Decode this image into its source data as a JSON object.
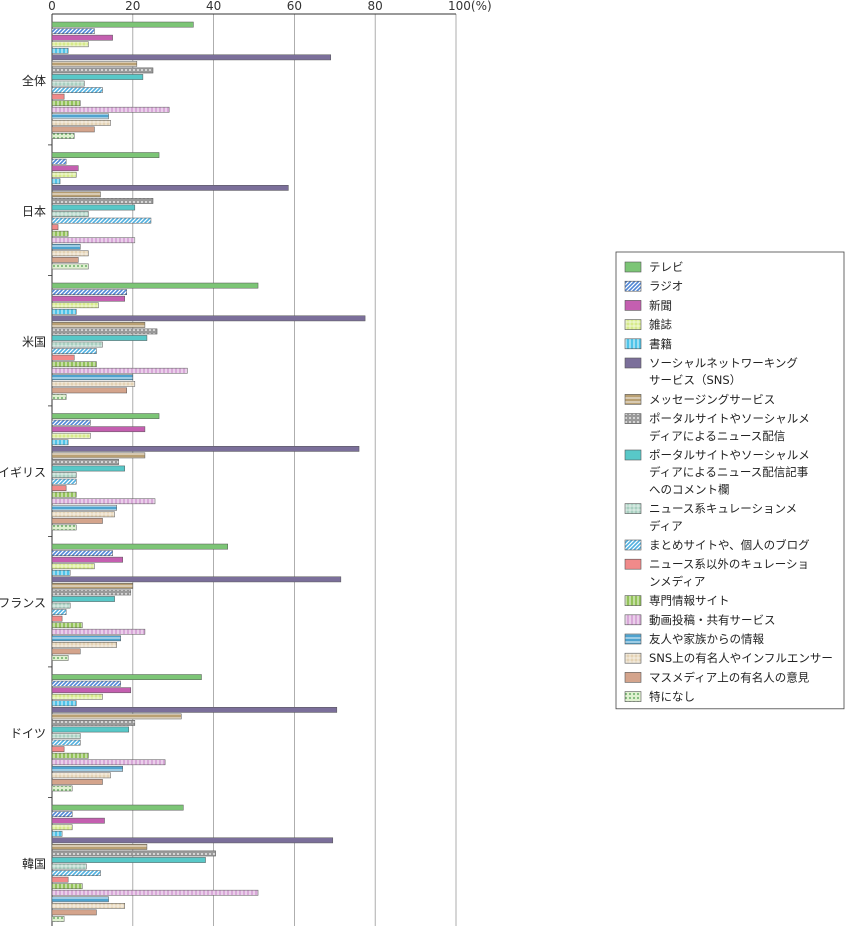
{
  "chart_data": {
    "type": "bar",
    "orientation": "horizontal",
    "xlim": [
      0,
      100
    ],
    "x_ticks": [
      "0",
      "20",
      "40",
      "60",
      "80",
      "100(%)"
    ],
    "x_tick_values": [
      0,
      20,
      40,
      60,
      80,
      100
    ],
    "grid": true,
    "legend_position": "right",
    "categories": [
      "全体",
      "日本",
      "米国",
      "イギリス",
      "フランス",
      "ドイツ",
      "韓国"
    ],
    "series": [
      {
        "name": "テレビ",
        "color": "#7cc576",
        "pattern": "solid",
        "values": [
          35,
          26.5,
          51,
          26.5,
          43.5,
          37,
          32.5
        ]
      },
      {
        "name": "ラジオ",
        "color": "#4f86d6",
        "pattern": "diag",
        "values": [
          10.5,
          3.5,
          18.5,
          9.5,
          15,
          17,
          5
        ]
      },
      {
        "name": "新聞",
        "color": "#c45fb0",
        "pattern": "solid",
        "values": [
          15,
          6.5,
          18,
          23,
          17.5,
          19.5,
          13
        ]
      },
      {
        "name": "雑誌",
        "color": "#d6ea8a",
        "pattern": "grid",
        "values": [
          9,
          6,
          11.5,
          9.5,
          10.5,
          12.5,
          5
        ]
      },
      {
        "name": "書籍",
        "color": "#4fc3e8",
        "pattern": "vlines",
        "values": [
          4,
          2,
          6,
          4,
          4.5,
          6,
          2.5
        ]
      },
      {
        "name": "ソーシャルネットワーキングサービス（SNS）",
        "color": "#7b6f9a",
        "pattern": "solid",
        "values": [
          69,
          58.5,
          77.5,
          76,
          71.5,
          70.5,
          69.5
        ]
      },
      {
        "name": "メッセージングサービス",
        "color": "#b9a073",
        "pattern": "hlines",
        "values": [
          21,
          12,
          23,
          23,
          20,
          32,
          23.5
        ]
      },
      {
        "name": "ポータルサイトやソーシャルメディアによるニュース配信",
        "color": "#9a9a9a",
        "pattern": "dots",
        "values": [
          25,
          25,
          26,
          16.5,
          19.5,
          20.5,
          40.5
        ]
      },
      {
        "name": "ポータルサイトやソーシャルメディアによるニュース配信記事へのコメント欄",
        "color": "#58c8c8",
        "pattern": "solid",
        "values": [
          22.5,
          20.5,
          23.5,
          18,
          15.5,
          19,
          38
        ]
      },
      {
        "name": "ニュース系キュレーションメディア",
        "color": "#a8cfc0",
        "pattern": "grid",
        "values": [
          8,
          9,
          12.5,
          6,
          4.5,
          7,
          8.5
        ]
      },
      {
        "name": "まとめサイトや、個人のブログ",
        "color": "#4fb0e0",
        "pattern": "diag",
        "values": [
          12.5,
          24.5,
          11,
          6,
          3.5,
          7,
          12
        ]
      },
      {
        "name": "ニュース系以外のキュレーションメディア",
        "color": "#f08a8a",
        "pattern": "solid",
        "values": [
          3,
          1.5,
          5.5,
          3.5,
          2.5,
          3,
          4
        ]
      },
      {
        "name": "専門情報サイト",
        "color": "#93c25a",
        "pattern": "vlines",
        "values": [
          7,
          4,
          11,
          6,
          7.5,
          9,
          7.5
        ]
      },
      {
        "name": "動画投稿・共有サービス",
        "color": "#d8a8d8",
        "pattern": "vlines",
        "values": [
          29,
          20.5,
          33.5,
          25.5,
          23,
          28,
          51
        ]
      },
      {
        "name": "友人や家族からの情報",
        "color": "#4fa3cf",
        "pattern": "hlines",
        "values": [
          14,
          7,
          20,
          16,
          17,
          17.5,
          14
        ]
      },
      {
        "name": "SNS上の有名人やインフルエンサー",
        "color": "#e4d2b4",
        "pattern": "grid",
        "values": [
          14.5,
          9,
          20.5,
          15.5,
          16,
          14.5,
          18
        ]
      },
      {
        "name": "マスメディア上の有名人の意見",
        "color": "#d4a48c",
        "pattern": "solid",
        "values": [
          10.5,
          6.5,
          18.5,
          12.5,
          7,
          12.5,
          11
        ]
      },
      {
        "name": "特になし",
        "color": "#dff0d0",
        "pattern": "dots",
        "values": [
          5.5,
          9,
          3.5,
          6,
          4,
          5,
          3
        ]
      }
    ]
  },
  "legend": {
    "items": [
      {
        "lines": [
          "テレビ"
        ]
      },
      {
        "lines": [
          "ラジオ"
        ]
      },
      {
        "lines": [
          "新聞"
        ]
      },
      {
        "lines": [
          "雑誌"
        ]
      },
      {
        "lines": [
          "書籍"
        ]
      },
      {
        "lines": [
          "ソーシャルネットワーキング",
          "サービス（SNS）"
        ]
      },
      {
        "lines": [
          "メッセージングサービス"
        ]
      },
      {
        "lines": [
          "ポータルサイトやソーシャルメ",
          "ディアによるニュース配信"
        ]
      },
      {
        "lines": [
          "ポータルサイトやソーシャルメ",
          "ディアによるニュース配信記事",
          "へのコメント欄"
        ]
      },
      {
        "lines": [
          "ニュース系キュレーションメ",
          "ディア"
        ]
      },
      {
        "lines": [
          "まとめサイトや、個人のブログ"
        ]
      },
      {
        "lines": [
          "ニュース系以外のキュレーショ",
          "ンメディア"
        ]
      },
      {
        "lines": [
          "専門情報サイト"
        ]
      },
      {
        "lines": [
          "動画投稿・共有サービス"
        ]
      },
      {
        "lines": [
          "友人や家族からの情報"
        ]
      },
      {
        "lines": [
          "SNS上の有名人やインフルエンサー"
        ]
      },
      {
        "lines": [
          "マスメディア上の有名人の意見"
        ]
      },
      {
        "lines": [
          "特になし"
        ]
      }
    ]
  }
}
